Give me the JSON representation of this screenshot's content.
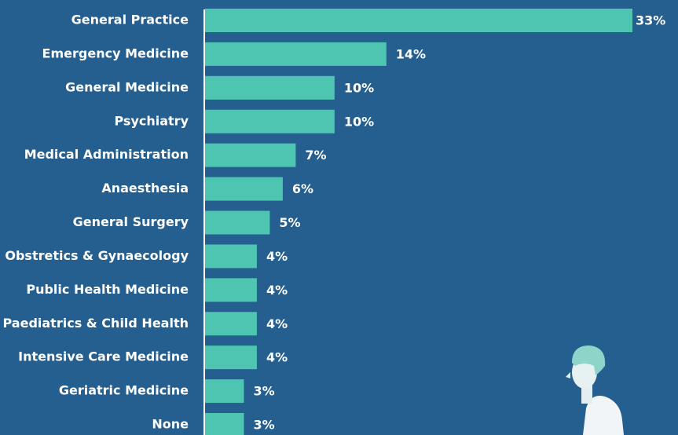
{
  "chart_data": {
    "type": "bar",
    "orientation": "horizontal",
    "color": "#4ec5b0",
    "categories": [
      "General Practice",
      "Emergency Medicine",
      "General Medicine",
      "Psychiatry",
      "Medical Administration",
      "Anaesthesia",
      "General Surgery",
      "Obstretics & Gynaecology",
      "Public Health Medicine",
      "Paediatrics & Child Health",
      "Intensive Care Medicine",
      "Geriatric Medicine",
      "None"
    ],
    "values": [
      33,
      14,
      10,
      10,
      7,
      6,
      5,
      4,
      4,
      4,
      4,
      3,
      3
    ],
    "value_labels": [
      "33%",
      "14%",
      "10%",
      "10%",
      "7%",
      "6%",
      "5%",
      "4%",
      "4%",
      "4%",
      "4%",
      "3%",
      "3%"
    ]
  }
}
